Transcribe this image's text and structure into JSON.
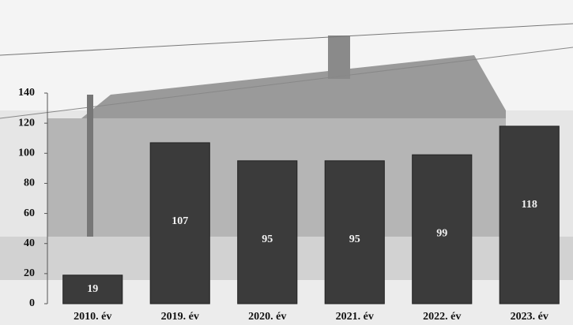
{
  "chart_data": {
    "type": "bar",
    "categories": [
      "2010. év",
      "2019. év",
      "2020. év",
      "2021. év",
      "2022. év",
      "2023. év"
    ],
    "values": [
      19,
      107,
      95,
      95,
      99,
      118
    ],
    "color": "#3b3b3b",
    "ylim": [
      0,
      140
    ],
    "yticks": [
      0,
      20,
      40,
      60,
      80,
      100,
      120,
      140
    ],
    "grid": false
  }
}
